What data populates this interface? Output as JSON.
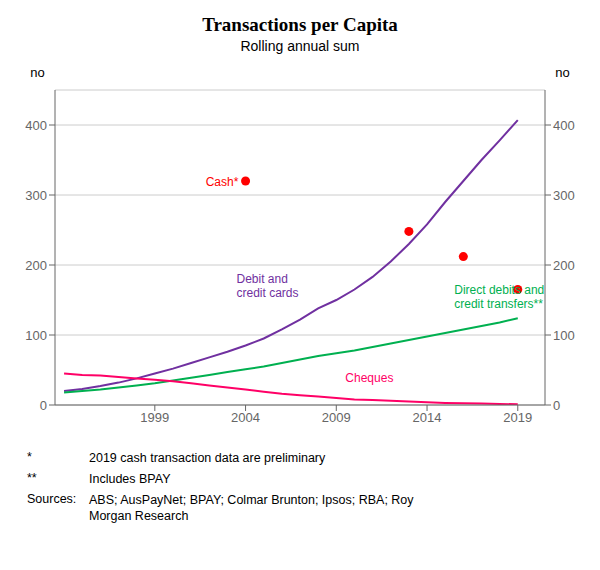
{
  "chart_data": {
    "type": "line",
    "title": "Transactions per Capita",
    "subtitle": "Rolling annual sum",
    "ylabel": "no",
    "y2label": "no",
    "x": [
      1994,
      1995,
      1996,
      1997,
      1998,
      1999,
      2000,
      2001,
      2002,
      2003,
      2004,
      2005,
      2006,
      2007,
      2008,
      2009,
      2010,
      2011,
      2012,
      2013,
      2014,
      2015,
      2016,
      2017,
      2018,
      2019
    ],
    "series": [
      {
        "name": "Debit and\ncredit cards",
        "type": "line",
        "color": "#7030A0",
        "values": [
          20,
          23,
          27,
          32,
          38,
          45,
          52,
          60,
          68,
          76,
          85,
          95,
          108,
          122,
          138,
          150,
          165,
          183,
          205,
          230,
          258,
          290,
          320,
          350,
          378,
          407
        ]
      },
      {
        "name": "Direct debits and\ncredit transfers**",
        "type": "line",
        "color": "#00B050",
        "values": [
          18,
          20,
          22,
          25,
          28,
          31,
          35,
          39,
          43,
          47,
          51,
          55,
          60,
          65,
          70,
          74,
          78,
          83,
          88,
          93,
          98,
          103,
          108,
          113,
          118,
          124
        ]
      },
      {
        "name": "Cheques",
        "type": "line",
        "color": "#FF0066",
        "values": [
          45,
          43,
          42,
          40,
          38,
          36,
          34,
          31,
          28,
          25,
          22,
          19,
          16,
          14,
          12,
          10,
          8,
          7,
          6,
          5,
          4,
          3,
          2.5,
          2,
          1.5,
          1
        ]
      },
      {
        "name": "Cash*",
        "type": "scatter",
        "color": "#FF0000",
        "x": [
          2004,
          2013,
          2016,
          2019
        ],
        "values": [
          320,
          248,
          212,
          165
        ]
      }
    ],
    "xlim": [
      1993.5,
      2020.5
    ],
    "xticks": [
      1999,
      2004,
      2009,
      2014,
      2019
    ],
    "ylim": [
      0,
      450
    ],
    "yticks": [
      0,
      100,
      200,
      300,
      400
    ],
    "y2lim": [
      0,
      450
    ],
    "y2ticks": [
      0,
      100,
      200,
      300,
      400
    ],
    "grid": true,
    "annotations": [
      {
        "text": "Cash*",
        "x": 2001.8,
        "y": 318,
        "color": "#FF0000"
      },
      {
        "text": "Debit and\ncredit cards",
        "x": 2003.5,
        "y": 170,
        "color": "#7030A0"
      },
      {
        "text": "Direct debits and\ncredit transfers**",
        "x": 2015.5,
        "y": 155,
        "color": "#00B050"
      },
      {
        "text": "Cheques",
        "x": 2009.5,
        "y": 38,
        "color": "#FF0066"
      }
    ],
    "footnotes": [
      {
        "label": "*",
        "text": "2019 cash transaction data are preliminary"
      },
      {
        "label": "**",
        "text": "Includes BPAY"
      },
      {
        "label": "Sources:",
        "text": "ABS; AusPayNet; BPAY; Colmar Brunton; Ipsos; RBA; Roy\nMorgan Research"
      }
    ]
  }
}
